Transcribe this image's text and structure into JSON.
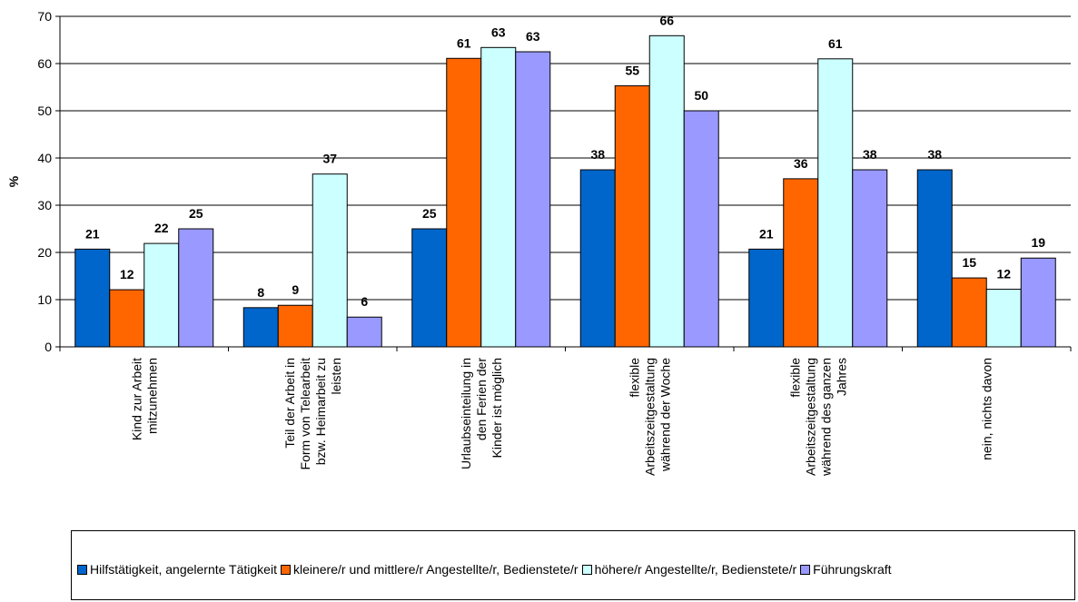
{
  "chart_data": {
    "type": "bar",
    "ylabel": "%",
    "ylim": [
      0,
      70
    ],
    "yticks": [
      0,
      10,
      20,
      30,
      40,
      50,
      60,
      70
    ],
    "grid": true,
    "legend_position": "bottom",
    "categories": [
      [
        "Kind zur Arbeit",
        "mitzunehmen"
      ],
      [
        "Teil der Arbeit in",
        "Form von Telearbeit",
        "bzw. Heimarbeit zu",
        "leisten"
      ],
      [
        "Urlaubseinteilung in",
        "den Ferien der",
        "Kinder ist möglich"
      ],
      [
        "flexible",
        "Arbeitszeitgestaltung",
        "während der Woche"
      ],
      [
        "flexible",
        "Arbeitszeitgestaltung",
        "während des ganzen",
        "Jahres"
      ],
      [
        "nein, nichts davon"
      ]
    ],
    "series": [
      {
        "name": "Hilfstätigkeit, angelernte Tätigkeit",
        "color": "#0066cc",
        "values": [
          20.7,
          8.3,
          25,
          37.5,
          20.7,
          37.5
        ],
        "labels": [
          "21",
          "8",
          "25",
          "38",
          "21",
          "38"
        ]
      },
      {
        "name": "kleinere/r und mittlere/r Angestellte/r, Bedienstete/r",
        "color": "#ff6600",
        "values": [
          12.1,
          8.8,
          61.1,
          55.3,
          35.6,
          14.6
        ],
        "labels": [
          "12",
          "9",
          "61",
          "55",
          "36",
          "15"
        ]
      },
      {
        "name": "höhere/r Angestellte/r, Bedienstete/r",
        "color": "#ccffff",
        "values": [
          21.9,
          36.6,
          63.4,
          65.9,
          61,
          12.2
        ],
        "labels": [
          "22",
          "37",
          "63",
          "66",
          "61",
          "12"
        ]
      },
      {
        "name": "Führungskraft",
        "color": "#9999ff",
        "values": [
          25,
          6.3,
          62.5,
          50,
          37.5,
          18.8
        ],
        "labels": [
          "25",
          "6",
          "63",
          "50",
          "38",
          "19"
        ]
      }
    ]
  }
}
